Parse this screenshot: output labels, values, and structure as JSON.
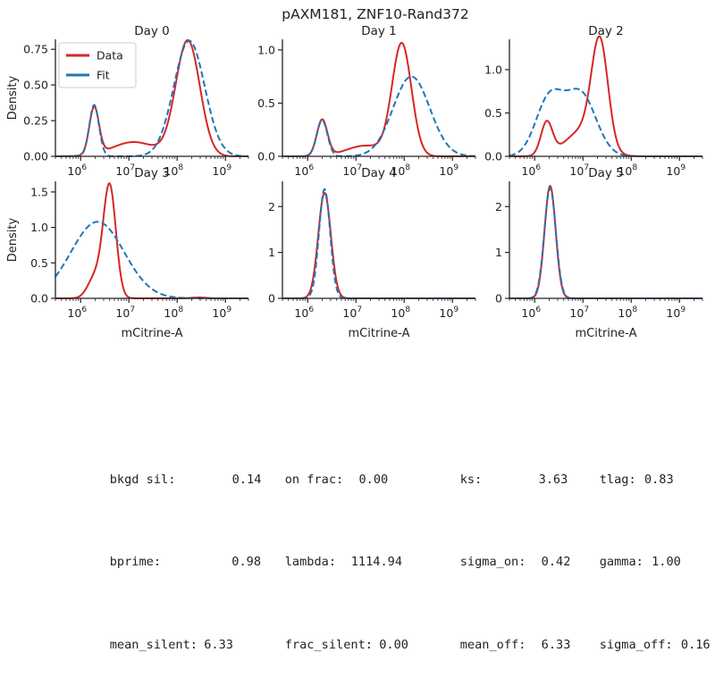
{
  "figure": {
    "title": "pAXM181, ZNF10-Rand372"
  },
  "legend": {
    "data_label": "Data",
    "fit_label": "Fit",
    "data_color": "#d62728",
    "fit_color": "#1f77b4"
  },
  "chart_data": [
    {
      "type": "line",
      "title": "Day 0",
      "xscale": "log",
      "xlim": [
        300000,
        3000000000
      ],
      "ylim": [
        0,
        0.82
      ],
      "yticks": [
        "0.00",
        "0.25",
        "0.50",
        "0.75"
      ],
      "ytick_values": [
        0,
        0.25,
        0.5,
        0.75
      ],
      "xlabel": "",
      "ylabel": "Density",
      "legend": "top-left",
      "series": [
        {
          "name": "Data",
          "style": "solid",
          "peaks": [
            {
              "center": 6.28,
              "amp": 0.33,
              "width": 0.1
            },
            {
              "center": 7.1,
              "amp": 0.1,
              "width": 0.45
            },
            {
              "center": 8.22,
              "amp": 0.81,
              "width": 0.25
            }
          ]
        },
        {
          "name": "Fit",
          "style": "dashed",
          "peaks": [
            {
              "center": 6.28,
              "amp": 0.36,
              "width": 0.1
            },
            {
              "center": 8.25,
              "amp": 0.81,
              "width": 0.32
            }
          ]
        }
      ]
    },
    {
      "type": "line",
      "title": "Day 1",
      "xscale": "log",
      "xlim": [
        300000,
        3000000000
      ],
      "ylim": [
        0,
        1.1
      ],
      "yticks": [
        "0.0",
        "0.5",
        "1.0"
      ],
      "ytick_values": [
        0,
        0.5,
        1.0
      ],
      "xlabel": "",
      "ylabel": "",
      "series": [
        {
          "name": "Data",
          "style": "solid",
          "peaks": [
            {
              "center": 6.3,
              "amp": 0.34,
              "width": 0.11
            },
            {
              "center": 7.2,
              "amp": 0.1,
              "width": 0.4
            },
            {
              "center": 7.95,
              "amp": 1.05,
              "width": 0.2
            }
          ]
        },
        {
          "name": "Fit",
          "style": "dashed",
          "peaks": [
            {
              "center": 6.3,
              "amp": 0.34,
              "width": 0.11
            },
            {
              "center": 8.15,
              "amp": 0.75,
              "width": 0.38
            }
          ]
        }
      ]
    },
    {
      "type": "line",
      "title": "Day 2",
      "xscale": "log",
      "xlim": [
        300000,
        3000000000
      ],
      "ylim": [
        0,
        1.35
      ],
      "yticks": [
        "0.0",
        "0.5",
        "1.0"
      ],
      "ytick_values": [
        0,
        0.5,
        1.0
      ],
      "xlabel": "",
      "ylabel": "",
      "series": [
        {
          "name": "Data",
          "style": "solid",
          "peaks": [
            {
              "center": 6.25,
              "amp": 0.38,
              "width": 0.12
            },
            {
              "center": 7.0,
              "amp": 0.3,
              "width": 0.35
            },
            {
              "center": 7.35,
              "amp": 1.2,
              "width": 0.17
            }
          ]
        },
        {
          "name": "Fit",
          "style": "dashed",
          "peaks": [
            {
              "center": 6.3,
              "amp": 0.65,
              "width": 0.28
            },
            {
              "center": 6.95,
              "amp": 0.72,
              "width": 0.32
            }
          ]
        }
      ]
    },
    {
      "type": "line",
      "title": "Day 3",
      "xscale": "log",
      "xlim": [
        300000,
        3000000000
      ],
      "ylim": [
        0,
        1.65
      ],
      "yticks": [
        "0.0",
        "0.5",
        "1.0",
        "1.5"
      ],
      "ytick_values": [
        0,
        0.5,
        1.0,
        1.5
      ],
      "xlabel": "mCitrine-A",
      "ylabel": "Density",
      "series": [
        {
          "name": "Data",
          "style": "solid",
          "peaks": [
            {
              "center": 6.6,
              "amp": 1.58,
              "width": 0.13
            },
            {
              "center": 6.3,
              "amp": 0.3,
              "width": 0.15
            },
            {
              "center": 8.45,
              "amp": 0.012,
              "width": 0.15
            }
          ]
        },
        {
          "name": "Fit",
          "style": "dashed",
          "peaks": [
            {
              "center": 6.35,
              "amp": 1.08,
              "width": 0.55
            }
          ]
        }
      ]
    },
    {
      "type": "line",
      "title": "Day 4",
      "xscale": "log",
      "xlim": [
        300000,
        3000000000
      ],
      "ylim": [
        0,
        2.55
      ],
      "yticks": [
        "0",
        "1",
        "2"
      ],
      "ytick_values": [
        0,
        1,
        2
      ],
      "xlabel": "mCitrine-A",
      "ylabel": "",
      "series": [
        {
          "name": "Data",
          "style": "solid",
          "peaks": [
            {
              "center": 6.35,
              "amp": 2.3,
              "width": 0.13
            }
          ]
        },
        {
          "name": "Fit",
          "style": "dashed",
          "peaks": [
            {
              "center": 6.35,
              "amp": 2.38,
              "width": 0.115
            }
          ]
        }
      ]
    },
    {
      "type": "line",
      "title": "Day 5",
      "xscale": "log",
      "xlim": [
        300000,
        3000000000
      ],
      "ylim": [
        0,
        2.55
      ],
      "yticks": [
        "0",
        "1",
        "2"
      ],
      "ytick_values": [
        0,
        1,
        2
      ],
      "xlabel": "mCitrine-A",
      "ylabel": "",
      "series": [
        {
          "name": "Data",
          "style": "solid",
          "peaks": [
            {
              "center": 6.32,
              "amp": 2.45,
              "width": 0.115
            }
          ]
        },
        {
          "name": "Fit",
          "style": "dashed",
          "peaks": [
            {
              "center": 6.32,
              "amp": 2.4,
              "width": 0.12
            }
          ]
        }
      ]
    }
  ],
  "stats": [
    [
      {
        "label": "bkgd sil:",
        "value": "0.14"
      },
      {
        "label": "on frac:",
        "value": "0.00"
      },
      {
        "label": "ks:",
        "value": "3.63"
      },
      {
        "label": "tlag:",
        "value": "0.83"
      }
    ],
    [
      {
        "label": "bprime:",
        "value": "0.98"
      },
      {
        "label": "lambda:",
        "value": "1114.94"
      },
      {
        "label": "sigma_on:",
        "value": "0.42"
      },
      {
        "label": "gamma:",
        "value": "1.00"
      }
    ],
    [
      {
        "label": "mean_silent:",
        "value": "6.33"
      },
      {
        "label": "frac_silent:",
        "value": "0.00"
      },
      {
        "label": "mean_off:",
        "value": "6.33"
      },
      {
        "label": "sigma_off:",
        "value": "0.16"
      }
    ]
  ]
}
